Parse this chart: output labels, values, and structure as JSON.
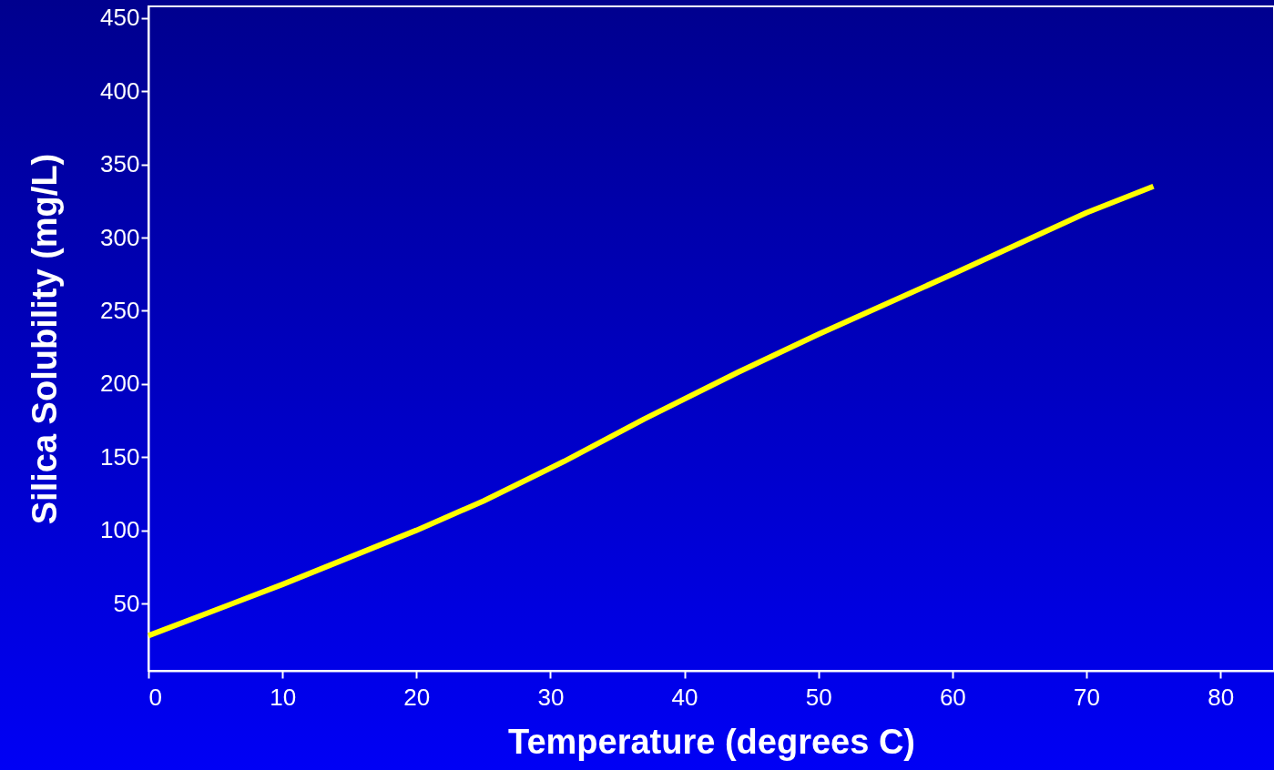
{
  "chart_data": {
    "type": "line",
    "xlabel": "Temperature (degrees C)",
    "ylabel": "Silica Solubility (mg/L)",
    "x": [
      0,
      10,
      20,
      25,
      31,
      37,
      44,
      50,
      60,
      70,
      75
    ],
    "series": [
      {
        "color": "#ffff00",
        "values": [
          28,
          63,
          100,
          120,
          147,
          176,
          208,
          234,
          275,
          317,
          335
        ]
      }
    ],
    "xlim": [
      0,
      84
    ],
    "xticks": [
      0,
      10,
      20,
      30,
      40,
      50,
      60,
      70,
      80
    ],
    "ylim": [
      4,
      458
    ],
    "yticks": [
      50,
      100,
      150,
      200,
      250,
      300,
      350,
      400,
      450
    ],
    "grid": false,
    "marker": "none",
    "line_style": "solid"
  }
}
